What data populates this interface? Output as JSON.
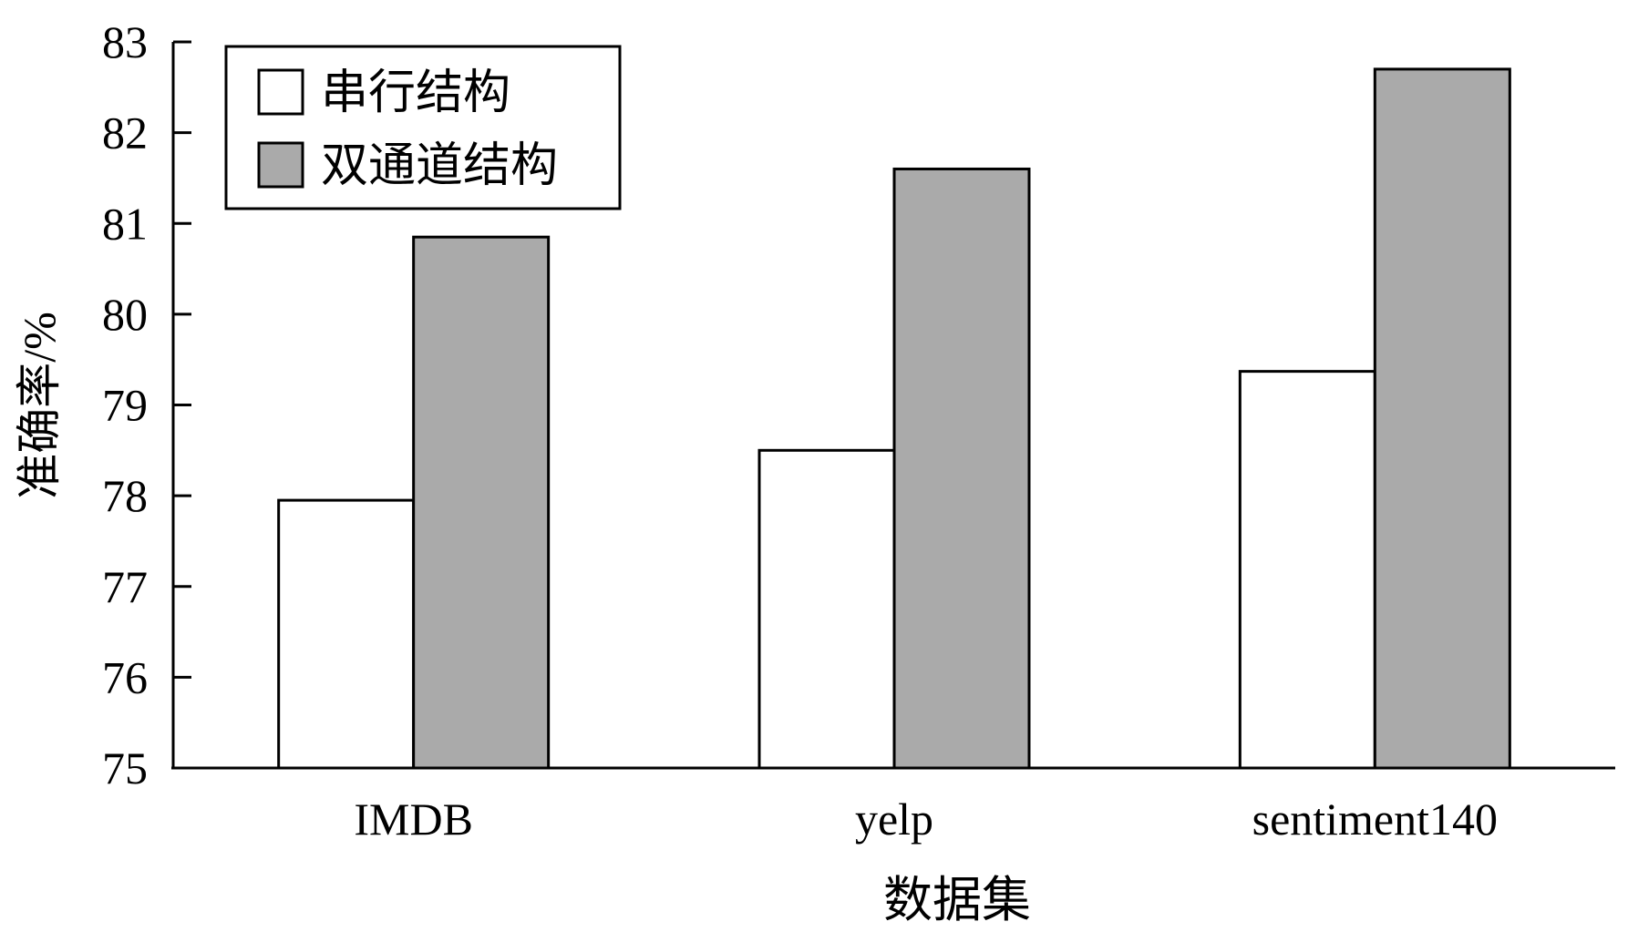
{
  "chart_data": {
    "type": "bar",
    "categories": [
      "IMDB",
      "yelp",
      "sentiment140"
    ],
    "series": [
      {
        "name": "串行结构",
        "values": [
          77.95,
          78.5,
          79.37
        ],
        "color": "#ffffff"
      },
      {
        "name": "双通道结构",
        "values": [
          80.85,
          81.6,
          82.7
        ],
        "color": "#aaaaaa"
      }
    ],
    "xlabel": "数据集",
    "ylabel": "准确率/%",
    "ylim": [
      75,
      83
    ],
    "yticks": [
      "75",
      "76",
      "77",
      "78",
      "79",
      "80",
      "81",
      "82",
      "83"
    ],
    "grid": false,
    "legend_position": "top-left"
  }
}
